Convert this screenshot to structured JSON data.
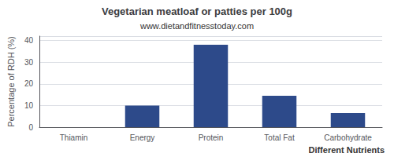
{
  "chart_data": {
    "type": "bar",
    "title": "Vegetarian meatloaf or patties per 100g",
    "subtitle": "www.dietandfitnesstoday.com",
    "xlabel": "Different Nutrients",
    "ylabel": "Percentage of RDH (%)",
    "categories": [
      "Thiamin",
      "Energy",
      "Protein",
      "Total Fat",
      "Carbohydrate"
    ],
    "values": [
      0,
      10,
      38,
      14.5,
      6.5
    ],
    "color": "#2d4a8a",
    "ylim": [
      0,
      42
    ],
    "yticks": [
      0,
      10,
      20,
      30,
      40
    ],
    "grid": true
  }
}
